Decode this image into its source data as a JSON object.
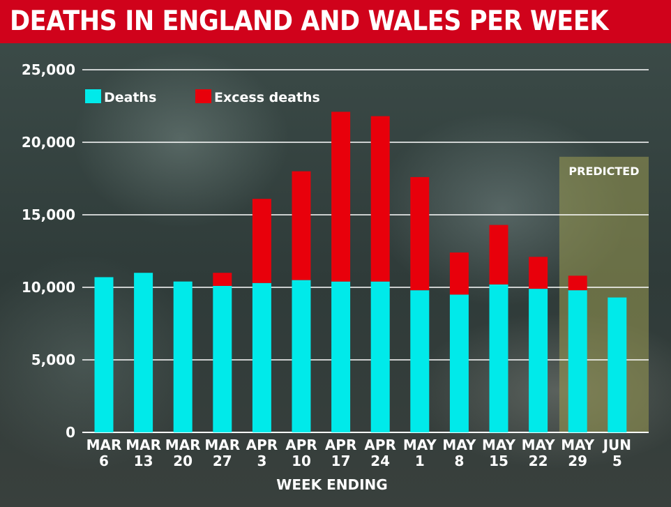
{
  "chart_data": {
    "type": "bar",
    "stacked": true,
    "title": "DEATHS IN ENGLAND AND WALES PER WEEK",
    "xlabel": "WEEK ENDING",
    "ylabel": "",
    "ylim": [
      0,
      25000
    ],
    "yticks": [
      0,
      5000,
      10000,
      15000,
      20000,
      25000
    ],
    "ytick_labels": [
      "0",
      "5,000",
      "10,000",
      "15,000",
      "20,000",
      "25,000"
    ],
    "grid": true,
    "legend_position": "top-left",
    "categories": [
      [
        "MAR",
        "6"
      ],
      [
        "MAR",
        "13"
      ],
      [
        "MAR",
        "20"
      ],
      [
        "MAR",
        "27"
      ],
      [
        "APR",
        "3"
      ],
      [
        "APR",
        "10"
      ],
      [
        "APR",
        "17"
      ],
      [
        "APR",
        "24"
      ],
      [
        "MAY",
        "1"
      ],
      [
        "MAY",
        "8"
      ],
      [
        "MAY",
        "15"
      ],
      [
        "MAY",
        "22"
      ],
      [
        "MAY",
        "29"
      ],
      [
        "JUN",
        "5"
      ]
    ],
    "series": [
      {
        "name": "Deaths",
        "color": "#00eaea",
        "values": [
          10700,
          11000,
          10400,
          10100,
          10300,
          10500,
          10400,
          10400,
          9800,
          9500,
          10200,
          9900,
          9800,
          9300
        ]
      },
      {
        "name": "Excess deaths",
        "color": "#e8000b",
        "values": [
          0,
          0,
          0,
          900,
          5800,
          7500,
          11700,
          11400,
          7800,
          2900,
          4100,
          2200,
          1000,
          0
        ]
      }
    ],
    "annotation": {
      "label": "PREDICTED",
      "categories": [
        "MAY 29",
        "JUN 5"
      ],
      "y_top": 19000,
      "color": "#9a9a52"
    }
  }
}
